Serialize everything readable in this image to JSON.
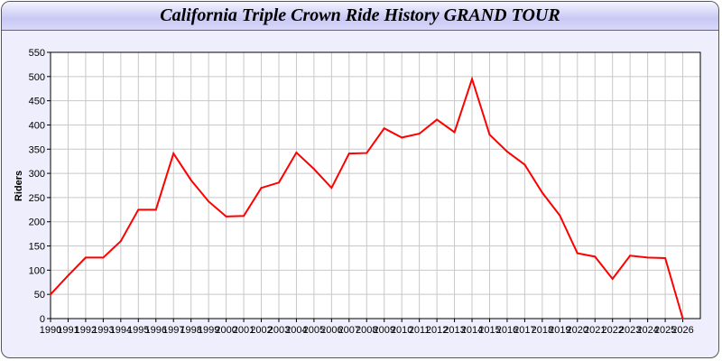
{
  "chart_data": {
    "type": "line",
    "title": "California Triple Crown Ride History GRAND TOUR",
    "xlabel": "",
    "ylabel": "Riders",
    "xlim": [
      1990,
      2027
    ],
    "ylim": [
      0,
      550
    ],
    "yticks": [
      0,
      50,
      100,
      150,
      200,
      250,
      300,
      350,
      400,
      450,
      500,
      550
    ],
    "grid": true,
    "line_color": "#ff0000",
    "x": [
      1990,
      1991,
      1992,
      1993,
      1994,
      1995,
      1996,
      1997,
      1998,
      1999,
      2000,
      2001,
      2002,
      2003,
      2004,
      2005,
      2006,
      2007,
      2008,
      2009,
      2010,
      2011,
      2012,
      2013,
      2014,
      2015,
      2016,
      2017,
      2018,
      2019,
      2020,
      2021,
      2022,
      2023,
      2024,
      2025,
      2026
    ],
    "series": [
      {
        "values": [
          50,
          89,
          126,
          126,
          160,
          225,
          225,
          341,
          286,
          242,
          211,
          212,
          270,
          281,
          343,
          309,
          270,
          341,
          342,
          393,
          374,
          382,
          411,
          385,
          495,
          380,
          345,
          318,
          260,
          213,
          135,
          128,
          82,
          130,
          126,
          125,
          0
        ]
      }
    ]
  }
}
